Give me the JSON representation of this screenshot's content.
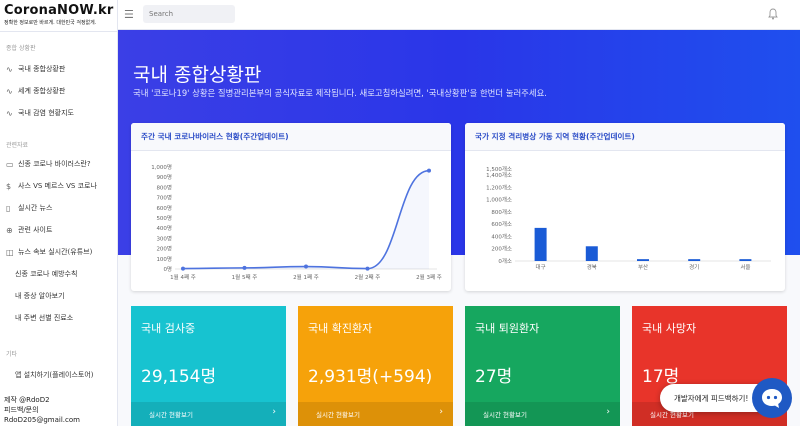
{
  "brand": {
    "title": "CoronaNOW.kr",
    "subtitle": "정확한 정보로만 바르게. 대한민국 걱정없게."
  },
  "search": {
    "placeholder": "Search"
  },
  "sidebar": {
    "sections": [
      {
        "heading": "종합 상황판"
      },
      {
        "heading": "관련자료"
      },
      {
        "heading": "기타"
      }
    ],
    "items": [
      {
        "label": "국내 종합상황판",
        "icon": "pulse-icon"
      },
      {
        "label": "세계 종합상황판",
        "icon": "pulse-icon"
      },
      {
        "label": "국내 감염 현황지도",
        "icon": "pulse-icon"
      },
      {
        "label": "신종 코로나 바이러스란?",
        "icon": "folder-icon"
      },
      {
        "label": "사스 VS 메르스 VS 코로나",
        "icon": "dollar-icon"
      },
      {
        "label": "실시간 뉴스",
        "icon": "document-icon"
      },
      {
        "label": "관련 사이트",
        "icon": "link-icon"
      },
      {
        "label": "뉴스 속보 실시간(유튜브)",
        "icon": "clip-icon"
      },
      {
        "label": "신종 코로나 예방수칙"
      },
      {
        "label": "내 증상 알아보기"
      },
      {
        "label": "내 주변 선별 진료소"
      },
      {
        "label": "앱 설치하기(플레이스토어)"
      }
    ],
    "footer": {
      "line1": "제작 @RdoD2",
      "line2": "피드백/문의",
      "line3": "RdoD205@gmail.com"
    }
  },
  "hero": {
    "title": "국내 종합상황판",
    "description": "국내 '코로나19' 상황은 질병관리본부의 공식자료로 제작됩니다. 새로고침하실려면, '국내상황판'을 한번더 눌러주세요."
  },
  "cards": {
    "weekly": {
      "title": "주간 국내 코로나바이러스 현황(주간업데이트)"
    },
    "beds": {
      "title": "국가 지정 격리병상 가동 지역 현황(주간업데이트)"
    }
  },
  "chart_data": [
    {
      "type": "line",
      "title": "주간 국내 코로나바이러스 현황(주간업데이트)",
      "categories": [
        "1월 4째 주",
        "1월 5째 주",
        "2월 1째 주",
        "2월 2째 주",
        "2월 3째 주"
      ],
      "values": [
        4,
        11,
        24,
        4,
        964
      ],
      "yticks": [
        "0명",
        "100명",
        "200명",
        "300명",
        "400명",
        "500명",
        "600명",
        "700명",
        "800명",
        "900명",
        "1,000명"
      ],
      "ylim": [
        0,
        1000
      ],
      "fill": true,
      "grid": false,
      "color": "#4e73df"
    },
    {
      "type": "bar",
      "title": "국가 지정 격리병상 가동 지역 현황(주간업데이트)",
      "categories": [
        "대구",
        "경북",
        "부산",
        "경기",
        "서울"
      ],
      "values": [
        540,
        240,
        30,
        30,
        30
      ],
      "yticks": [
        "0개소",
        "200개소",
        "400개소",
        "600개소",
        "800개소",
        "1,000개소",
        "1,200개소",
        "1,400개소",
        "1,500개소"
      ],
      "ytick_values": [
        0,
        200,
        400,
        600,
        800,
        1000,
        1200,
        1400,
        1500
      ],
      "ylim": [
        0,
        1500
      ],
      "grid": false,
      "color": "#1a5bd6"
    }
  ],
  "stats": [
    {
      "label": "국내 검사중",
      "value": "29,154명",
      "link": "실시간 현황보기",
      "color": "#17c3d0"
    },
    {
      "label": "국내 확진환자",
      "value": "2,931명(+594)",
      "link": "실시간 현황보기",
      "color": "#f6a20a"
    },
    {
      "label": "국내 퇴원환자",
      "value": "27명",
      "link": "실시간 현황보기",
      "color": "#16a75f"
    },
    {
      "label": "국내 사망자",
      "value": "17명",
      "link": "실시간 현황보기",
      "color": "#e8342a"
    }
  ],
  "feedback": {
    "label": "개발자에게 피드백하기!"
  }
}
